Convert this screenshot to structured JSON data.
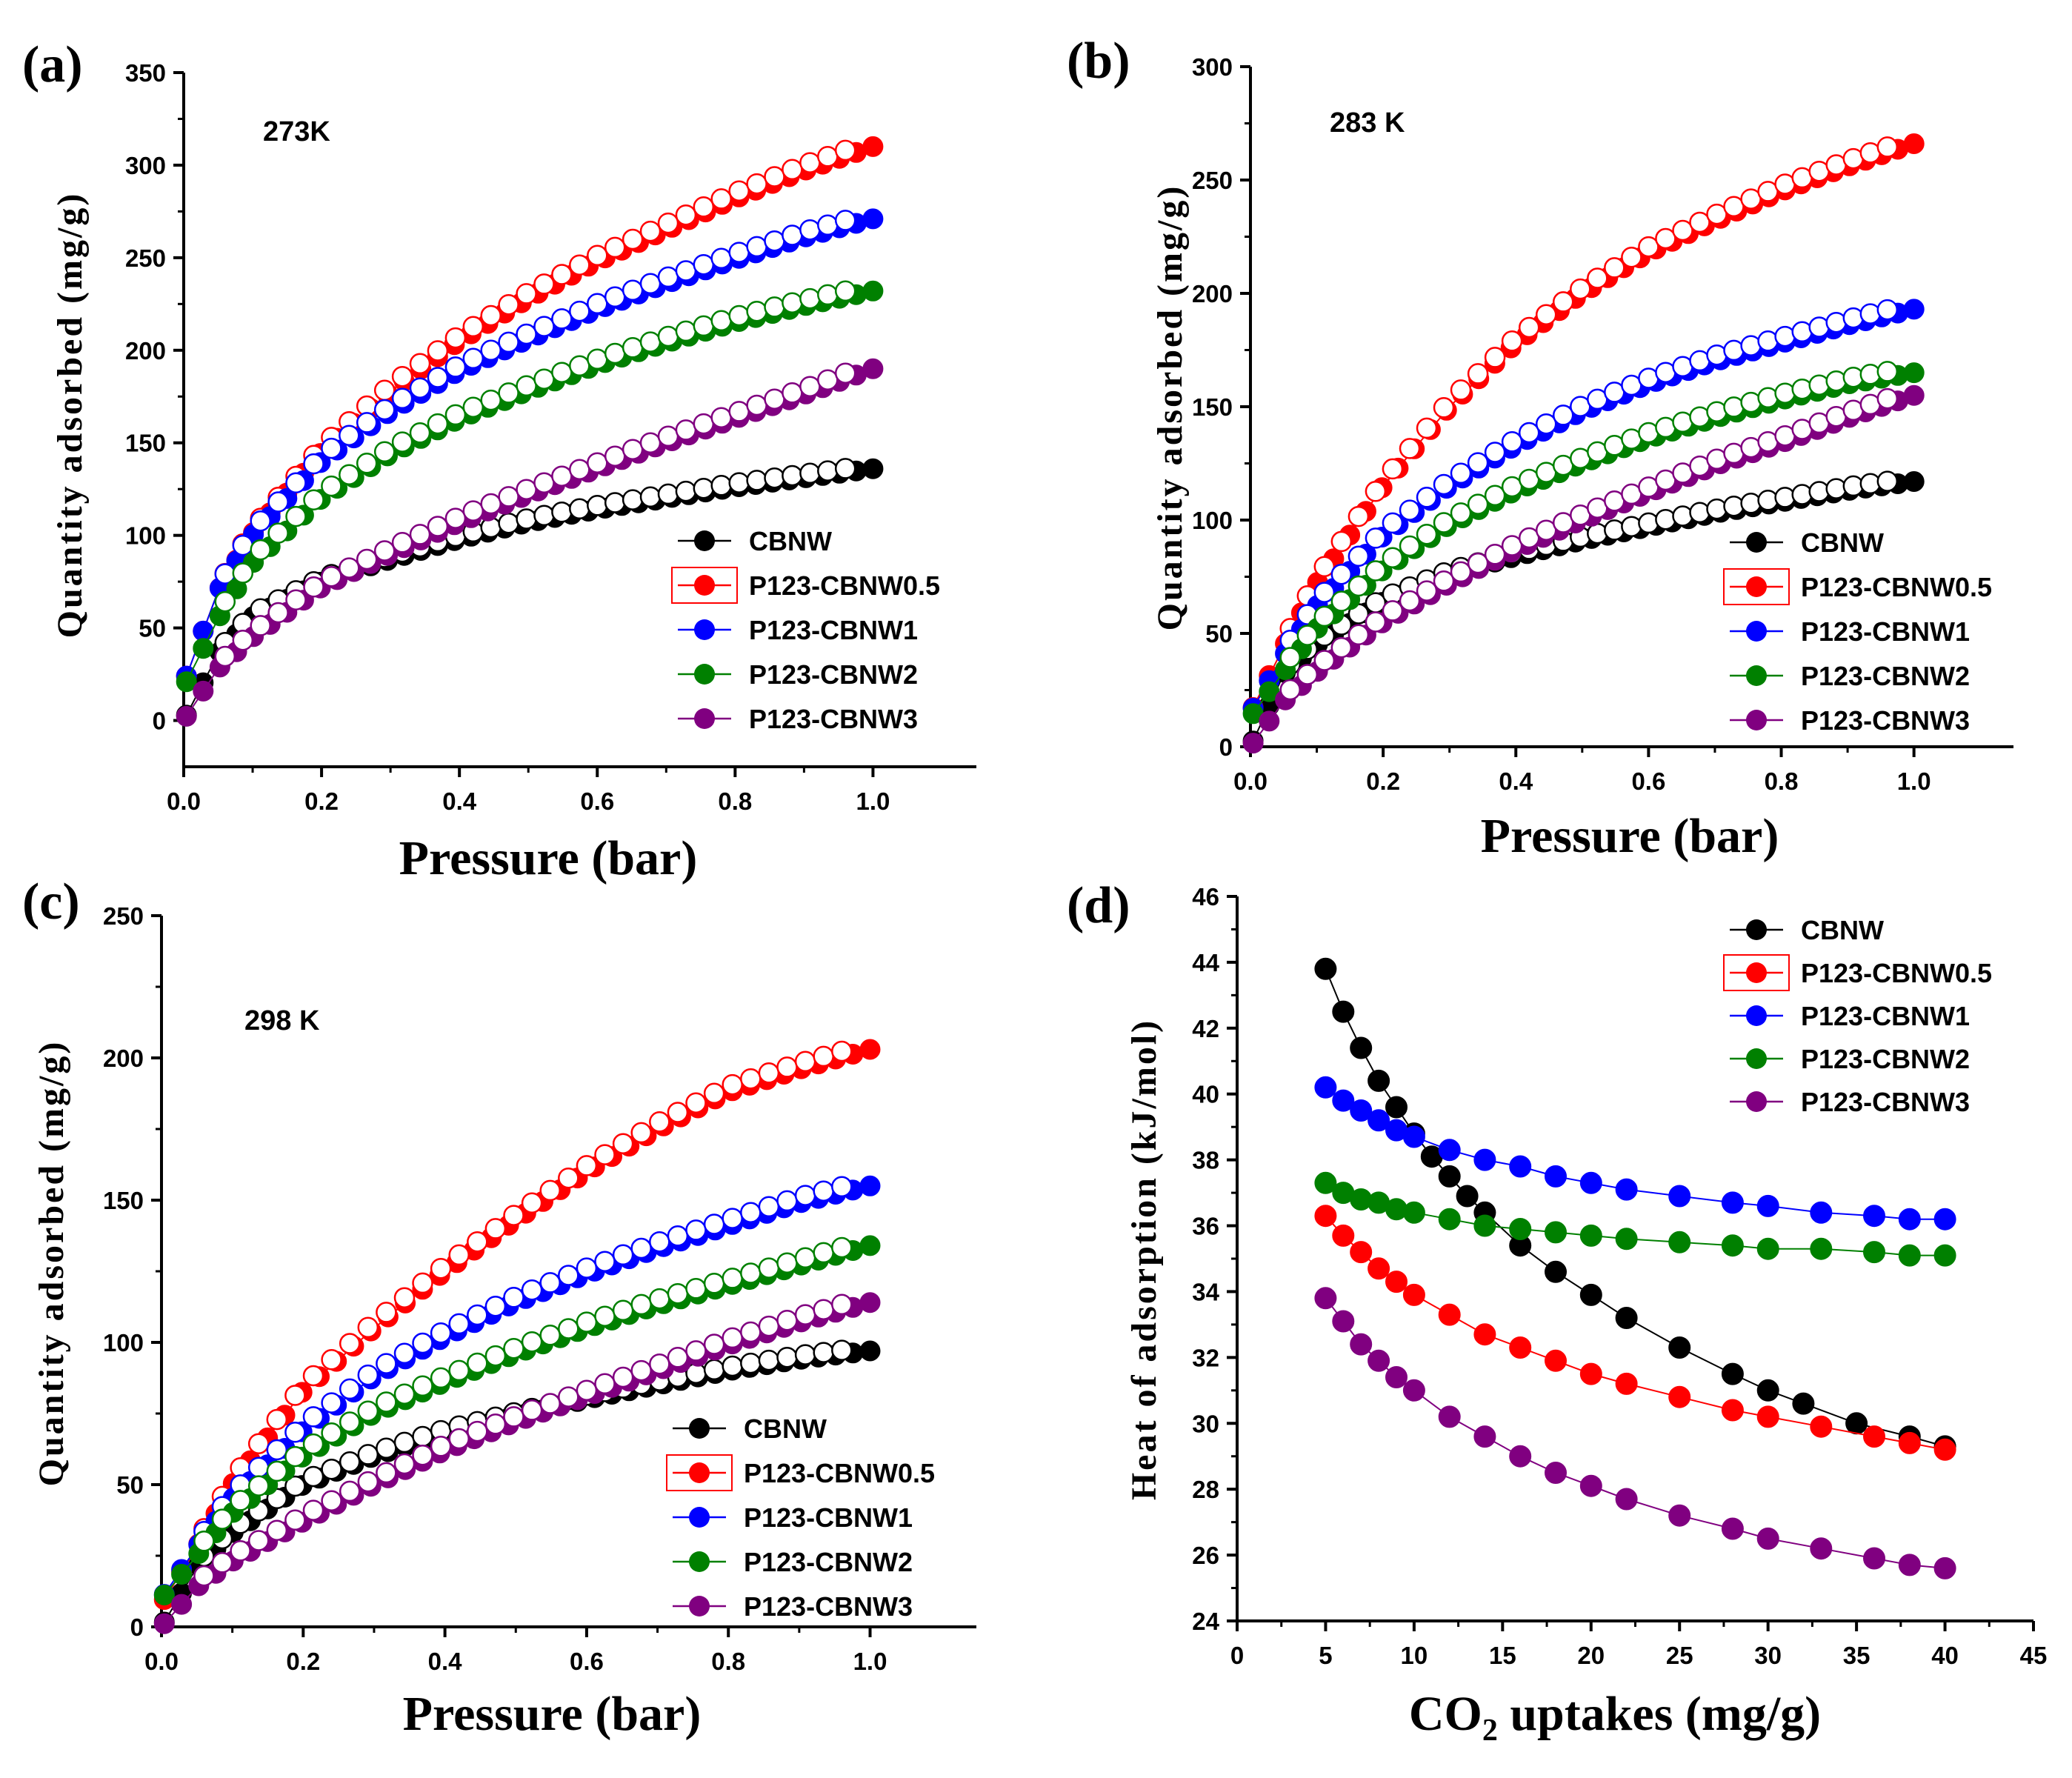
{
  "chart_data": [
    {
      "panel": "(a)",
      "type": "scatter",
      "annotation": "273K",
      "xlabel": "Pressure (bar)",
      "ylabel": "Quantity adsorbed (mg/g)",
      "xlim": [
        0,
        1.15
      ],
      "ylim": [
        -25,
        350
      ],
      "xticks": [
        0.0,
        0.2,
        0.4,
        0.6,
        0.8,
        1.0
      ],
      "xtick_labels": [
        "0.0",
        "0.2",
        "0.4",
        "0.6",
        "0.8",
        "1.0"
      ],
      "yticks": [
        0,
        50,
        100,
        150,
        200,
        250,
        300,
        350
      ],
      "ytick_labels": [
        "0",
        "50",
        "100",
        "150",
        "200",
        "250",
        "300",
        "350"
      ],
      "series": [
        {
          "name": "CBNW",
          "color": "#000000",
          "x": [
            0,
            0.05,
            0.1,
            0.2,
            0.3,
            0.4,
            0.5,
            0.6,
            0.7,
            0.8,
            0.9,
            1.0
          ],
          "values": [
            0,
            36,
            56,
            75,
            87,
            98,
            107,
            114,
            120,
            126,
            131,
            136
          ]
        },
        {
          "name": "P123-CBNW0.5",
          "color": "#ff0000",
          "x": [
            0,
            0.05,
            0.1,
            0.2,
            0.3,
            0.4,
            0.5,
            0.6,
            0.7,
            0.8,
            0.9,
            1.0
          ],
          "values": [
            20,
            70,
            101,
            145,
            178,
            205,
            228,
            248,
            265,
            282,
            297,
            310
          ]
        },
        {
          "name": "P123-CBNW1",
          "color": "#0000ff",
          "x": [
            0,
            0.05,
            0.1,
            0.2,
            0.3,
            0.4,
            0.5,
            0.6,
            0.7,
            0.8,
            0.9,
            1.0
          ],
          "values": [
            20,
            70,
            100,
            140,
            167,
            189,
            206,
            222,
            236,
            249,
            261,
            271
          ]
        },
        {
          "name": "P123-CBNW2",
          "color": "#008000",
          "x": [
            0,
            0.05,
            0.1,
            0.2,
            0.3,
            0.4,
            0.5,
            0.6,
            0.7,
            0.8,
            0.9,
            1.0
          ],
          "values": [
            18,
            55,
            85,
            120,
            144,
            163,
            178,
            192,
            204,
            215,
            224,
            232
          ]
        },
        {
          "name": "P123-CBNW3",
          "color": "#800080",
          "x": [
            0,
            0.05,
            0.1,
            0.2,
            0.3,
            0.4,
            0.5,
            0.6,
            0.7,
            0.8,
            0.9,
            1.0
          ],
          "values": [
            0,
            28,
            45,
            72,
            90,
            107,
            122,
            136,
            150,
            163,
            176,
            190
          ]
        }
      ],
      "legend": {
        "placement": "bottom-right",
        "items": [
          "CBNW",
          "P123-CBNW0.5",
          "P123-CBNW1",
          "P123-CBNW2",
          "P123-CBNW3"
        ]
      }
    },
    {
      "panel": "(b)",
      "type": "scatter",
      "annotation": "283 K",
      "xlabel": "Pressure (bar)",
      "ylabel": "Quantity adsorbed (mg/g)",
      "xlim": [
        0,
        1.15
      ],
      "ylim": [
        0,
        300
      ],
      "xticks": [
        0.0,
        0.2,
        0.4,
        0.6,
        0.8,
        1.0
      ],
      "xtick_labels": [
        "0.0",
        "0.2",
        "0.4",
        "0.6",
        "0.8",
        "1.0"
      ],
      "yticks": [
        0,
        50,
        100,
        150,
        200,
        250,
        300
      ],
      "ytick_labels": [
        "0",
        "50",
        "100",
        "150",
        "200",
        "250",
        "300"
      ],
      "series": [
        {
          "name": "CBNW",
          "color": "#000000",
          "x": [
            0,
            0.05,
            0.1,
            0.2,
            0.3,
            0.4,
            0.5,
            0.6,
            0.7,
            0.8,
            0.9,
            1.0
          ],
          "values": [
            0,
            32,
            45,
            64,
            76,
            84,
            91,
            97,
            103,
            108,
            113,
            117
          ]
        },
        {
          "name": "P123-CBNW0.5",
          "color": "#ff0000",
          "x": [
            0,
            0.05,
            0.1,
            0.2,
            0.3,
            0.4,
            0.5,
            0.6,
            0.7,
            0.8,
            0.9,
            1.0
          ],
          "values": [
            15,
            44,
            72,
            115,
            150,
            178,
            200,
            218,
            232,
            245,
            256,
            266
          ]
        },
        {
          "name": "P123-CBNW1",
          "color": "#0000ff",
          "x": [
            0,
            0.05,
            0.1,
            0.2,
            0.3,
            0.4,
            0.5,
            0.6,
            0.7,
            0.8,
            0.9,
            1.0
          ],
          "values": [
            15,
            40,
            62,
            93,
            115,
            133,
            148,
            160,
            170,
            178,
            186,
            193
          ]
        },
        {
          "name": "P123-CBNW2",
          "color": "#008000",
          "x": [
            0,
            0.05,
            0.1,
            0.2,
            0.3,
            0.4,
            0.5,
            0.6,
            0.7,
            0.8,
            0.9,
            1.0
          ],
          "values": [
            13,
            33,
            52,
            78,
            98,
            113,
            125,
            136,
            145,
            153,
            160,
            165
          ]
        },
        {
          "name": "P123-CBNW3",
          "color": "#800080",
          "x": [
            0,
            0.05,
            0.1,
            0.2,
            0.3,
            0.4,
            0.5,
            0.6,
            0.7,
            0.8,
            0.9,
            1.0
          ],
          "values": [
            0,
            20,
            33,
            55,
            72,
            87,
            100,
            112,
            124,
            134,
            145,
            155
          ]
        }
      ],
      "legend": {
        "placement": "bottom-right",
        "items": [
          "CBNW",
          "P123-CBNW0.5",
          "P123-CBNW1",
          "P123-CBNW2",
          "P123-CBNW3"
        ]
      }
    },
    {
      "panel": "(c)",
      "type": "scatter",
      "annotation": "298 K",
      "xlabel": "Pressure (bar)",
      "ylabel": "Quantity adsorbed (mg/g)",
      "xlim": [
        0,
        1.15
      ],
      "ylim": [
        0,
        250
      ],
      "xticks": [
        0.0,
        0.2,
        0.4,
        0.6,
        0.8,
        1.0
      ],
      "xtick_labels": [
        "0.0",
        "0.2",
        "0.4",
        "0.6",
        "0.8",
        "1.0"
      ],
      "yticks": [
        0,
        50,
        100,
        150,
        200,
        250
      ],
      "ytick_labels": [
        "0",
        "50",
        "100",
        "150",
        "200",
        "250"
      ],
      "series": [
        {
          "name": "CBNW",
          "color": "#000000",
          "x": [
            0,
            0.05,
            0.1,
            0.2,
            0.3,
            0.4,
            0.5,
            0.6,
            0.7,
            0.8,
            0.9,
            1.0
          ],
          "values": [
            0,
            21,
            33,
            50,
            60,
            68,
            74,
            80,
            85,
            90,
            94,
            97
          ]
        },
        {
          "name": "P123-CBNW0.5",
          "color": "#ff0000",
          "x": [
            0,
            0.05,
            0.1,
            0.2,
            0.3,
            0.4,
            0.5,
            0.6,
            0.7,
            0.8,
            0.9,
            1.0
          ],
          "values": [
            8,
            28,
            50,
            83,
            105,
            125,
            143,
            160,
            175,
            188,
            196,
            203
          ]
        },
        {
          "name": "P123-CBNW1",
          "color": "#0000ff",
          "x": [
            0,
            0.05,
            0.1,
            0.2,
            0.3,
            0.4,
            0.5,
            0.6,
            0.7,
            0.8,
            0.9,
            1.0
          ],
          "values": [
            10,
            28,
            45,
            69,
            88,
            102,
            114,
            124,
            133,
            141,
            149,
            155
          ]
        },
        {
          "name": "P123-CBNW2",
          "color": "#008000",
          "x": [
            0,
            0.05,
            0.1,
            0.2,
            0.3,
            0.4,
            0.5,
            0.6,
            0.7,
            0.8,
            0.9,
            1.0
          ],
          "values": [
            10,
            25,
            40,
            60,
            75,
            86,
            96,
            105,
            113,
            120,
            127,
            134
          ]
        },
        {
          "name": "P123-CBNW3",
          "color": "#800080",
          "x": [
            0,
            0.05,
            0.1,
            0.2,
            0.3,
            0.4,
            0.5,
            0.6,
            0.7,
            0.8,
            0.9,
            1.0
          ],
          "values": [
            0,
            14,
            23,
            37,
            50,
            62,
            72,
            81,
            90,
            99,
            107,
            114
          ]
        }
      ],
      "legend": {
        "placement": "bottom-right",
        "items": [
          "CBNW",
          "P123-CBNW0.5",
          "P123-CBNW1",
          "P123-CBNW2",
          "P123-CBNW3"
        ]
      }
    },
    {
      "panel": "(d)",
      "type": "line",
      "xlabel": "CO2 uptakes (mg/g)",
      "ylabel": "Heat of adsorption (kJ/mol)",
      "xlim": [
        0,
        45
      ],
      "ylim": [
        24,
        46
      ],
      "xticks": [
        0,
        5,
        10,
        15,
        20,
        25,
        30,
        35,
        40,
        45
      ],
      "xtick_labels": [
        "0",
        "5",
        "10",
        "15",
        "20",
        "25",
        "30",
        "35",
        "40",
        "45"
      ],
      "yticks": [
        24,
        26,
        28,
        30,
        32,
        34,
        36,
        38,
        40,
        42,
        44,
        46
      ],
      "ytick_labels": [
        "24",
        "26",
        "28",
        "30",
        "32",
        "34",
        "36",
        "38",
        "40",
        "42",
        "44",
        "46"
      ],
      "series": [
        {
          "name": "CBNW",
          "color": "#000000",
          "x": [
            5,
            6,
            7,
            8,
            9,
            10,
            11,
            12,
            13,
            14,
            16,
            18,
            20,
            22,
            25,
            28,
            30,
            32,
            35,
            38,
            40
          ],
          "values": [
            43.8,
            42.5,
            41.4,
            40.4,
            39.6,
            38.8,
            38.1,
            37.5,
            36.9,
            36.4,
            35.4,
            34.6,
            33.9,
            33.2,
            32.3,
            31.5,
            31.0,
            30.6,
            30.0,
            29.6,
            29.3
          ]
        },
        {
          "name": "P123-CBNW0.5",
          "color": "#ff0000",
          "x": [
            5,
            6,
            7,
            8,
            9,
            10,
            12,
            14,
            16,
            18,
            20,
            22,
            25,
            28,
            30,
            33,
            36,
            38,
            40
          ],
          "values": [
            36.3,
            35.7,
            35.2,
            34.7,
            34.3,
            33.9,
            33.3,
            32.7,
            32.3,
            31.9,
            31.5,
            31.2,
            30.8,
            30.4,
            30.2,
            29.9,
            29.6,
            29.4,
            29.2
          ]
        },
        {
          "name": "P123-CBNW1",
          "color": "#0000ff",
          "x": [
            5,
            6,
            7,
            8,
            9,
            10,
            12,
            14,
            16,
            18,
            20,
            22,
            25,
            28,
            30,
            33,
            36,
            38,
            40
          ],
          "values": [
            40.2,
            39.8,
            39.5,
            39.2,
            38.9,
            38.7,
            38.3,
            38.0,
            37.8,
            37.5,
            37.3,
            37.1,
            36.9,
            36.7,
            36.6,
            36.4,
            36.3,
            36.2,
            36.2
          ]
        },
        {
          "name": "P123-CBNW2",
          "color": "#008000",
          "x": [
            5,
            6,
            7,
            8,
            9,
            10,
            12,
            14,
            16,
            18,
            20,
            22,
            25,
            28,
            30,
            33,
            36,
            38,
            40
          ],
          "values": [
            37.3,
            37.0,
            36.8,
            36.7,
            36.5,
            36.4,
            36.2,
            36.0,
            35.9,
            35.8,
            35.7,
            35.6,
            35.5,
            35.4,
            35.3,
            35.3,
            35.2,
            35.1,
            35.1
          ]
        },
        {
          "name": "P123-CBNW3",
          "color": "#800080",
          "x": [
            5,
            6,
            7,
            8,
            9,
            10,
            12,
            14,
            16,
            18,
            20,
            22,
            25,
            28,
            30,
            33,
            36,
            38,
            40
          ],
          "values": [
            33.8,
            33.1,
            32.4,
            31.9,
            31.4,
            31.0,
            30.2,
            29.6,
            29.0,
            28.5,
            28.1,
            27.7,
            27.2,
            26.8,
            26.5,
            26.2,
            25.9,
            25.7,
            25.6
          ]
        }
      ],
      "legend": {
        "placement": "top-right",
        "items": [
          "CBNW",
          "P123-CBNW0.5",
          "P123-CBNW1",
          "P123-CBNW2",
          "P123-CBNW3"
        ]
      }
    }
  ]
}
